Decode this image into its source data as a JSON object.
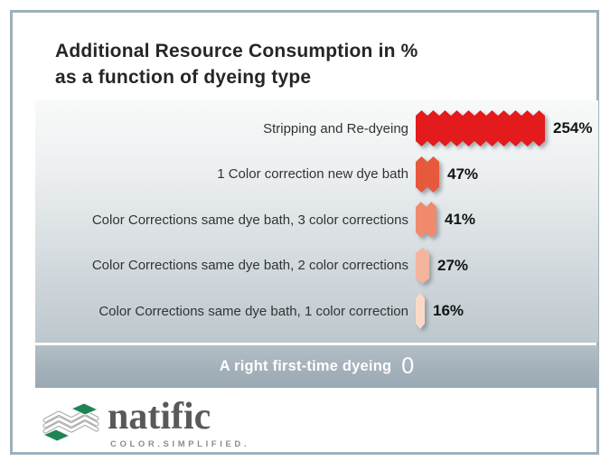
{
  "title": {
    "line1": "Additional Resource Consumption in %",
    "line2": "as a function of dyeing type"
  },
  "chart_data": {
    "type": "bar",
    "orientation": "horizontal",
    "title": "Additional Resource Consumption in % as a function of dyeing type",
    "unit": "%",
    "categories": [
      "Stripping and Re-dyeing",
      "1 Color correction new dye bath",
      "Color Corrections same dye bath, 3 color corrections",
      "Color Corrections same dye bath, 2 color corrections",
      "Color Corrections same dye bath, 1 color correction"
    ],
    "values": [
      254,
      47,
      41,
      27,
      16
    ],
    "value_labels": [
      "254%",
      "47%",
      "41%",
      "27%",
      "16%"
    ],
    "bar_colors": [
      "#e31b1c",
      "#e6593c",
      "#ef8a6c",
      "#f5b59d",
      "#fad9c6"
    ],
    "xlim": [
      0,
      254
    ],
    "grid": false,
    "legend": false,
    "baseline_row": {
      "label": "A right first-time dyeing",
      "value": "0"
    }
  },
  "footer": {
    "brand": "natific",
    "tagline": "COLOR.SIMPLIFIED."
  },
  "icons": {
    "logo": "natific-diamond-stack-icon"
  },
  "colors": {
    "frame_border": "#9fb1ba",
    "band_background": "#a3b1ba",
    "chart_gradient_top": "#f8fafa",
    "chart_gradient_bottom": "#bdc7cd",
    "accent_red": "#e31b1c",
    "logo_green": "#1d8456",
    "brand_gray": "#58595b"
  }
}
